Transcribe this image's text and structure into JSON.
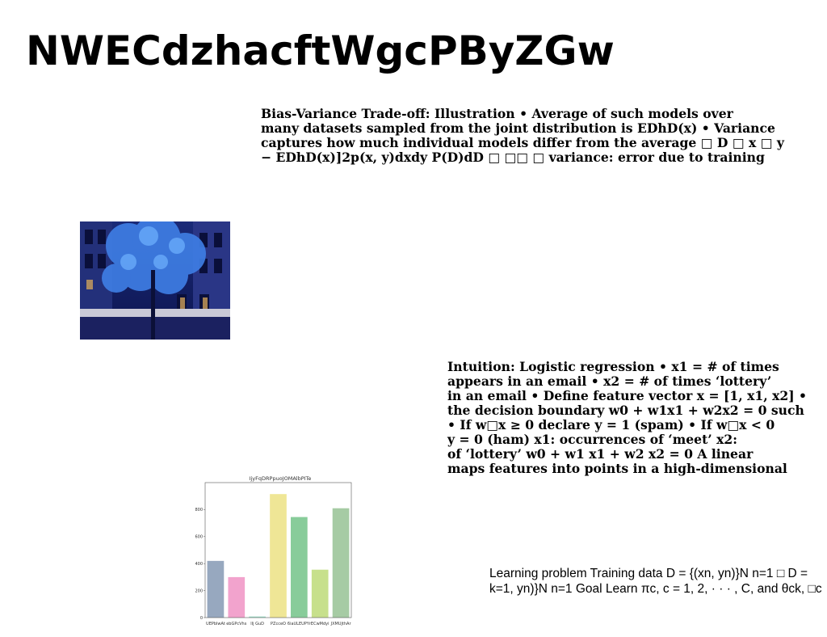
{
  "title": "NWECdzhacftWgcPByZGw",
  "bias_block": {
    "lines": [
      "Bias-Variance Trade-off: Illustration • Average of such models over",
      "many datasets sampled from the joint distribution is EDhD(x) • Variance",
      "captures how much individual models differ from the average □ D □ x □ y",
      "− EDhD(x)]2p(x, y)dxdy P(D)dD □ □□ □ variance: error due to training"
    ]
  },
  "logit_block": {
    "lines": [
      "Intuition: Logistic regression • x1 = # of times",
      "appears in an email • x2 = # of times ‘lottery’",
      "in an email • Define feature vector x = [1, x1, x2] •",
      "the decision boundary w0 + w1x1 + w2x2 = 0 such",
      "• If w□x ≥ 0 declare y = 1 (spam) • If w□x < 0",
      "y = 0 (ham) x1: occurrences of ‘meet’ x2:",
      "of ‘lottery’ w0 + w1 x1 + w2 x2 = 0 A linear",
      "maps features into points in a high-dimensional"
    ]
  },
  "learning_block": {
    "lines": [
      "Learning problem Training data D = {(xn, yn)}N n=1 □ D =",
      "k=1, yn)}N n=1 Goal Learn πc, c = 1, 2, · · · , C, and θck, □c"
    ]
  },
  "photo": {
    "subject": "blue-tinted tree in front of building",
    "icon": "photo-image"
  },
  "chart_data": {
    "type": "bar",
    "title": "IjyFqDRPpuoJOMAlbPITe",
    "categories": [
      "UEPblwAt",
      "ebGPcVhs",
      "lIj GuD",
      "PZcceO",
      "6iaULEUPYr",
      "ECwMdyi",
      "JXMUjthAr"
    ],
    "values": [
      420,
      300,
      8,
      915,
      745,
      355,
      810
    ],
    "colors": [
      "#97a8bf",
      "#f2a3cd",
      "#9de0c8",
      "#efe696",
      "#88cc9a",
      "#c7e08c",
      "#a6cba4"
    ],
    "ylim": [
      0,
      1000
    ],
    "yticks": [
      0,
      200,
      400,
      600,
      800
    ],
    "grid": false
  }
}
